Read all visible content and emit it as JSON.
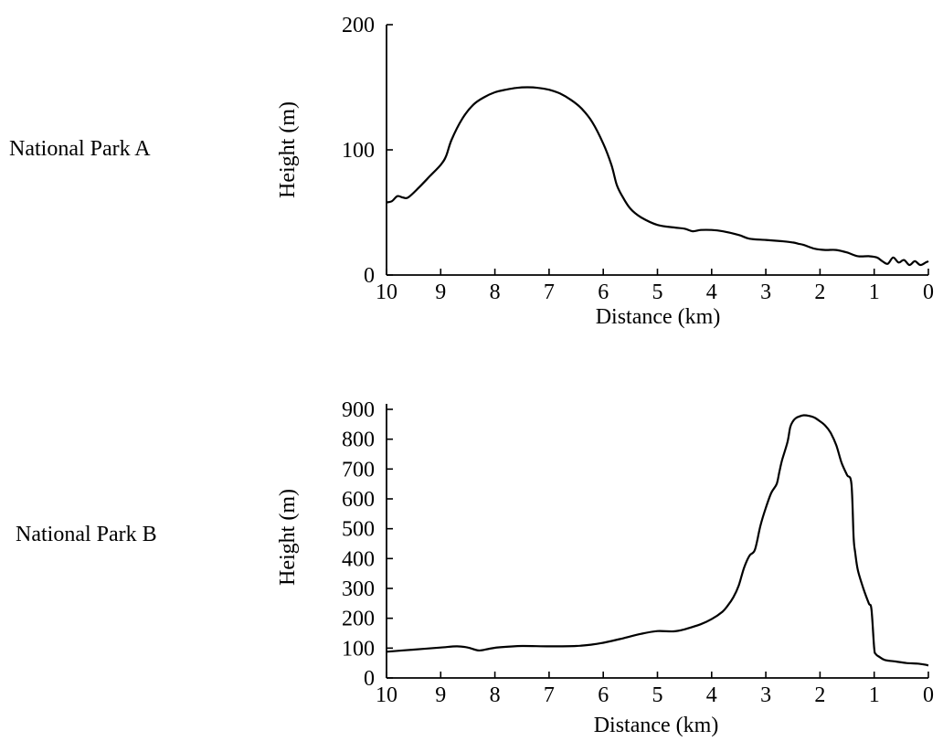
{
  "chart_data": [
    {
      "type": "line",
      "label": "National Park A",
      "xlabel": "Distance (km)",
      "ylabel": "Height (m)",
      "xlim": [
        10,
        0
      ],
      "ylim": [
        0,
        200
      ],
      "x_ticks": [
        10,
        9,
        8,
        7,
        6,
        5,
        4,
        3,
        2,
        1,
        0
      ],
      "y_ticks": [
        0,
        100,
        200
      ],
      "series": [
        {
          "x": [
            10,
            9.9,
            9.8,
            9.7,
            9.6,
            9.4,
            9.2,
            9.0,
            8.9,
            8.8,
            8.6,
            8.4,
            8.2,
            8.0,
            7.8,
            7.6,
            7.4,
            7.2,
            7.0,
            6.8,
            6.6,
            6.4,
            6.2,
            6.0,
            5.85,
            5.75,
            5.65,
            5.5,
            5.3,
            5.0,
            4.7,
            4.5,
            4.35,
            4.2,
            4.0,
            3.8,
            3.5,
            3.3,
            3.0,
            2.7,
            2.5,
            2.4,
            2.3,
            2.1,
            1.9,
            1.7,
            1.5,
            1.3,
            1.1,
            0.95,
            0.85,
            0.75,
            0.65,
            0.55,
            0.45,
            0.35,
            0.25,
            0.15,
            0.05,
            0.0
          ],
          "y": [
            58,
            59,
            63,
            62,
            62,
            70,
            79,
            88,
            95,
            108,
            125,
            136,
            142,
            146,
            148,
            149.5,
            150,
            149.5,
            148,
            145,
            140,
            133,
            122,
            105,
            88,
            72,
            63,
            53,
            46,
            40,
            38,
            37,
            35,
            36,
            36,
            35,
            32,
            29,
            28,
            27,
            26,
            25,
            24,
            21,
            20,
            20,
            18,
            15,
            15,
            14,
            11,
            9,
            14,
            10,
            12,
            8,
            11,
            8,
            10,
            11
          ]
        }
      ]
    },
    {
      "type": "line",
      "label": "National Park B",
      "xlabel": "Distance (km)",
      "ylabel": "Height (m)",
      "xlim": [
        10,
        0
      ],
      "ylim": [
        0,
        900
      ],
      "x_ticks": [
        10,
        9,
        8,
        7,
        6,
        5,
        4,
        3,
        2,
        1,
        0
      ],
      "y_ticks": [
        0,
        100,
        200,
        300,
        400,
        500,
        600,
        700,
        800,
        900
      ],
      "series": [
        {
          "x": [
            10,
            9.5,
            9.0,
            8.7,
            8.5,
            8.3,
            8.1,
            7.9,
            7.5,
            7.0,
            6.5,
            6.2,
            6.0,
            5.7,
            5.3,
            5.0,
            4.7,
            4.5,
            4.2,
            4.0,
            3.8,
            3.7,
            3.6,
            3.5,
            3.4,
            3.3,
            3.2,
            3.1,
            3.0,
            2.9,
            2.8,
            2.75,
            2.7,
            2.6,
            2.55,
            2.5,
            2.45,
            2.4,
            2.3,
            2.2,
            2.1,
            2.0,
            1.9,
            1.8,
            1.7,
            1.6,
            1.5,
            1.42,
            1.38,
            1.35,
            1.3,
            1.2,
            1.1,
            1.05,
            1.0,
            0.97,
            0.9,
            0.8,
            0.6,
            0.4,
            0.2,
            0.05,
            0.0
          ],
          "y": [
            88,
            95,
            102,
            106,
            102,
            92,
            98,
            103,
            107,
            106,
            107,
            112,
            118,
            130,
            148,
            157,
            156,
            163,
            180,
            197,
            222,
            243,
            270,
            310,
            370,
            410,
            430,
            510,
            570,
            620,
            650,
            690,
            730,
            790,
            840,
            860,
            870,
            875,
            880,
            878,
            872,
            860,
            845,
            820,
            780,
            720,
            680,
            650,
            470,
            420,
            360,
            300,
            250,
            230,
            100,
            80,
            70,
            60,
            55,
            50,
            48,
            44,
            42
          ]
        }
      ]
    }
  ]
}
